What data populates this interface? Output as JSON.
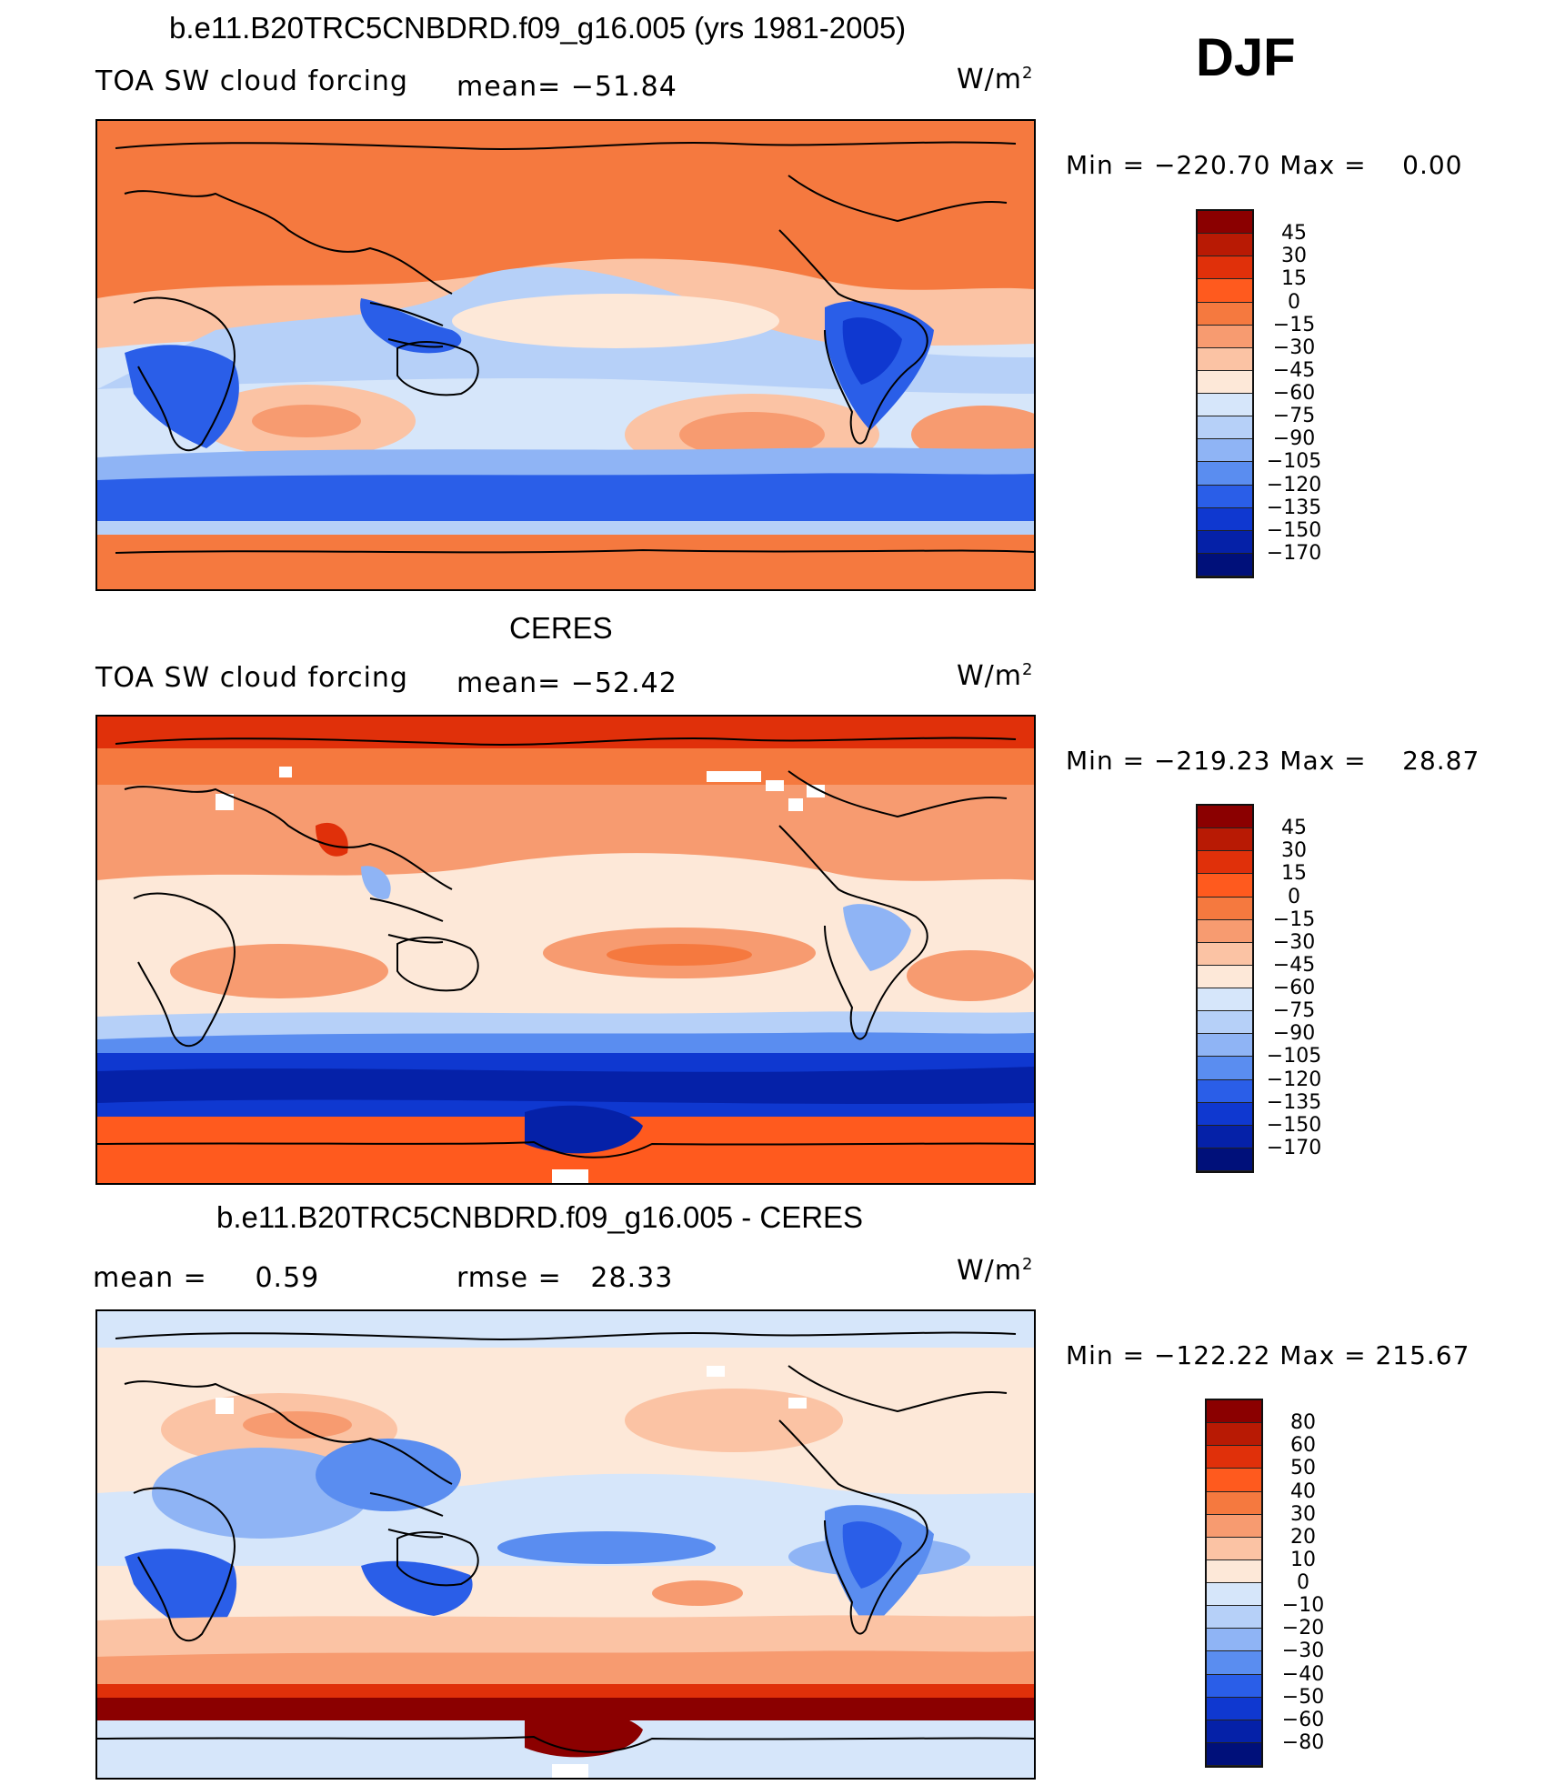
{
  "season": "DJF",
  "units_label": "W/m",
  "units_exp": "2",
  "panels": [
    {
      "title": "b.e11.B20TRC5CNBDRD.f09_g16.005 (yrs 1981-2005)",
      "left_label": "TOA SW cloud forcing",
      "mean_label": "mean=",
      "mean_value": "−51.84",
      "min_label": "Min",
      "min_value": "−220.70",
      "max_label": "Max",
      "max_value": "0.00",
      "ticks": [
        "45",
        "30",
        "15",
        "0",
        "−15",
        "−30",
        "−45",
        "−60",
        "−75",
        "−90",
        "−105",
        "−120",
        "−135",
        "−150",
        "−170"
      ]
    },
    {
      "title": "CERES",
      "left_label": "TOA SW cloud forcing",
      "mean_label": "mean=",
      "mean_value": "−52.42",
      "min_label": "Min",
      "min_value": "−219.23",
      "max_label": "Max",
      "max_value": "28.87",
      "ticks": [
        "45",
        "30",
        "15",
        "0",
        "−15",
        "−30",
        "−45",
        "−60",
        "−75",
        "−90",
        "−105",
        "−120",
        "−135",
        "−150",
        "−170"
      ]
    },
    {
      "title": "b.e11.B20TRC5CNBDRD.f09_g16.005 - CERES",
      "left_label": "mean =",
      "left_value": "0.59",
      "rmse_label": "rmse =",
      "rmse_value": "28.33",
      "min_label": "Min",
      "min_value": "−122.22",
      "max_label": "Max",
      "max_value": "215.67",
      "ticks": [
        "80",
        "60",
        "50",
        "40",
        "30",
        "20",
        "10",
        "0",
        "−10",
        "−20",
        "−30",
        "−40",
        "−50",
        "−60",
        "−80"
      ]
    }
  ],
  "palette": [
    "#8b0000",
    "#b81a04",
    "#e0300a",
    "#ff5a1e",
    "#f5793f",
    "#f79b70",
    "#fbc3a4",
    "#fde8d8",
    "#d6e6fa",
    "#b6d0f8",
    "#8fb4f5",
    "#5a8df0",
    "#2a5ee8",
    "#0f38d0",
    "#0521a8",
    "#00107a"
  ]
}
